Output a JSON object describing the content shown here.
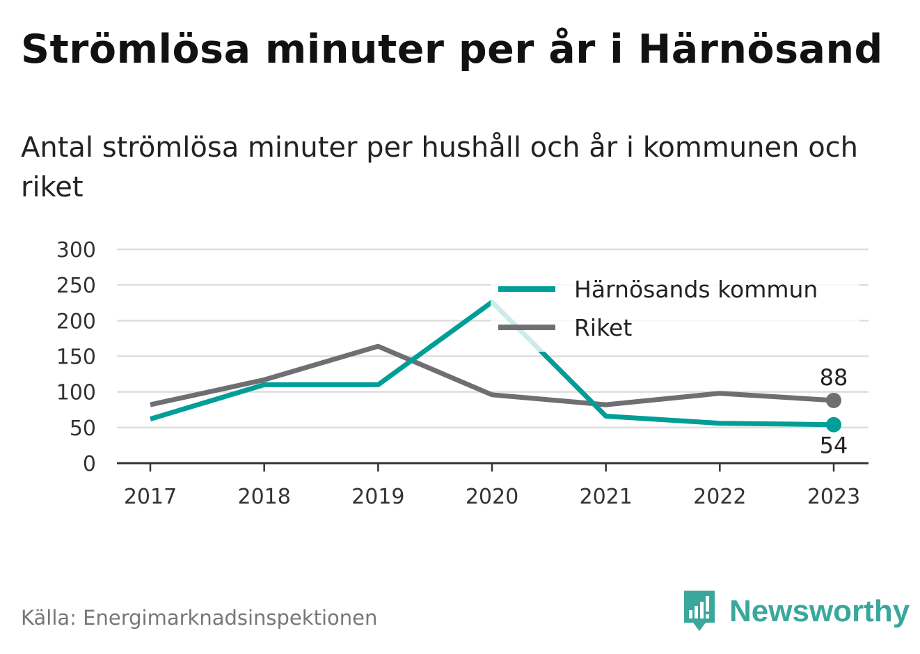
{
  "header": {
    "title": "Strömlösa minuter per år i Härnösand",
    "subtitle": "Antal strömlösa minuter per hushåll och år i kommunen och riket"
  },
  "footer": {
    "source": "Källa: Energimarknadsinspektionen",
    "brand": "Newsworthy"
  },
  "colors": {
    "kommun": "#009e96",
    "riket": "#6e6e73",
    "grid": "#dddddd",
    "axis": "#333333",
    "brand": "#3aa79c"
  },
  "icons": {
    "brand": "newsworthy-logo-icon"
  },
  "chart_data": {
    "type": "line",
    "x": [
      "2017",
      "2018",
      "2019",
      "2020",
      "2021",
      "2022",
      "2023"
    ],
    "ylim": [
      0,
      300
    ],
    "yticks": [
      0,
      50,
      100,
      150,
      200,
      250,
      300
    ],
    "grid": true,
    "legend": "top-right",
    "series": [
      {
        "name": "Härnösands kommun",
        "values": [
          62,
          110,
          110,
          226,
          66,
          56,
          54
        ],
        "end_label": "54"
      },
      {
        "name": "Riket",
        "values": [
          82,
          117,
          164,
          96,
          82,
          98,
          88
        ],
        "end_label": "88"
      }
    ]
  }
}
